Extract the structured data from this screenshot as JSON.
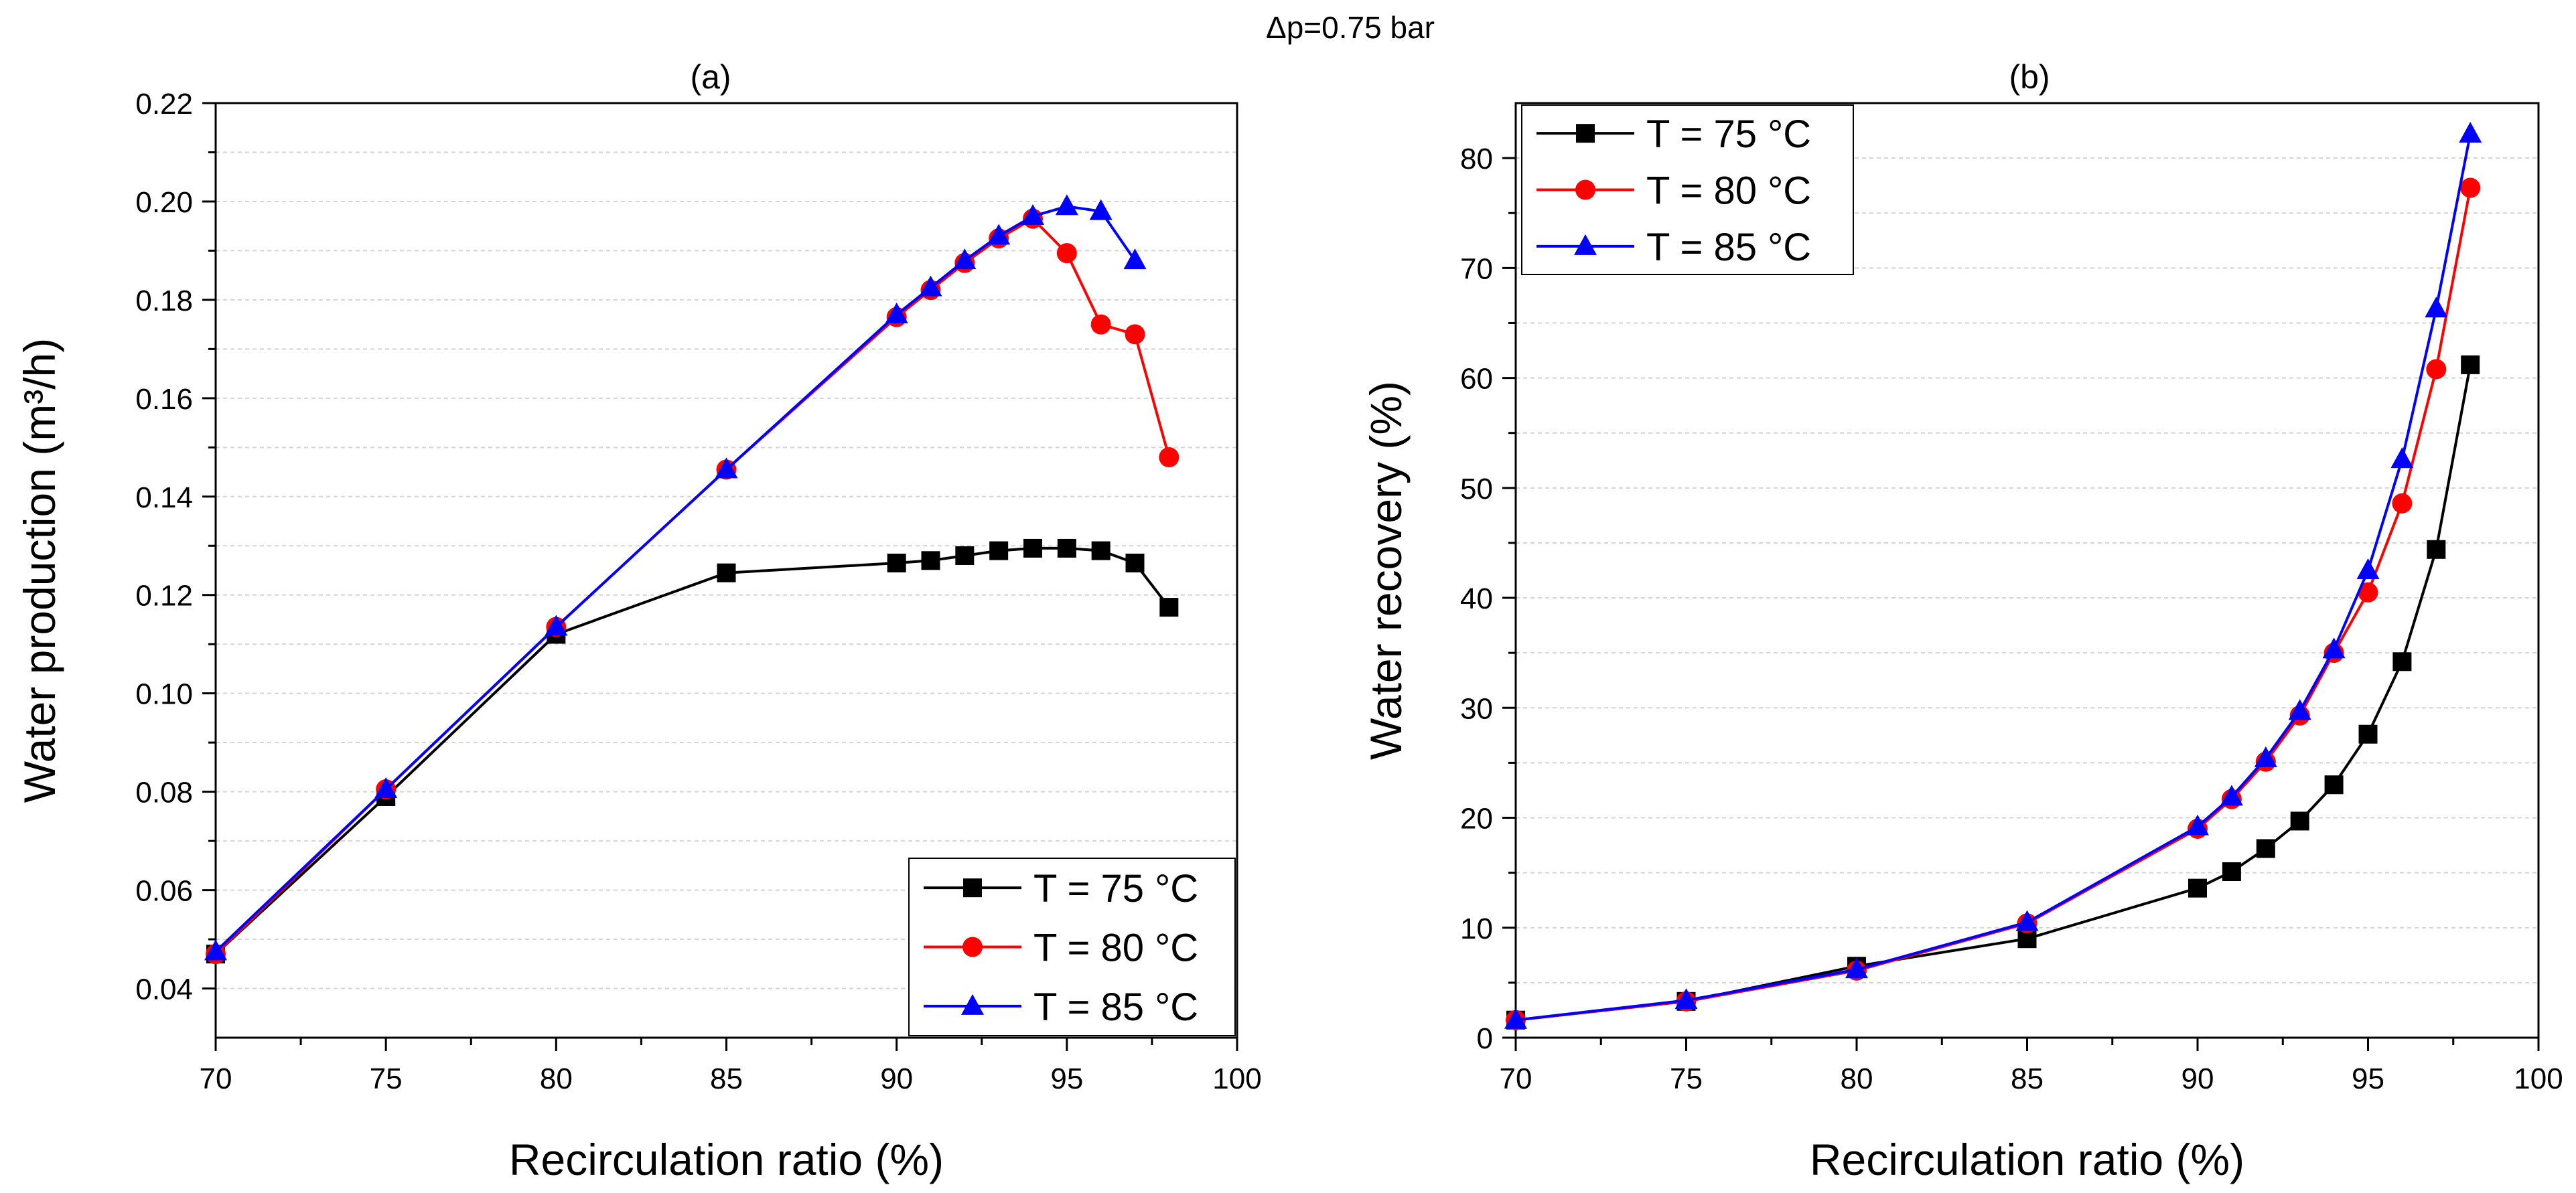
{
  "figure": {
    "suptitle": "Δp=0.75 bar"
  },
  "chart_data": [
    {
      "type": "line",
      "panel": "(a)",
      "title": "(a)",
      "xlabel": "Recirculation ratio (%)",
      "ylabel": "Water production (m³/h)",
      "xlim": [
        70,
        100
      ],
      "ylim": [
        0.03,
        0.22
      ],
      "xticks": [
        70,
        75,
        80,
        85,
        90,
        95,
        100
      ],
      "yticks": [
        0.04,
        0.06,
        0.08,
        0.1,
        0.12,
        0.14,
        0.16,
        0.18,
        0.2,
        0.22
      ],
      "ytick_labels": [
        "0.04",
        "0.06",
        "0.08",
        "0.10",
        "0.12",
        "0.14",
        "0.16",
        "0.18",
        "0.20",
        "0.22"
      ],
      "grid": true,
      "legend_position": "bottom-right",
      "series": [
        {
          "name": "T = 75 °C",
          "color": "#000000",
          "marker": "square",
          "x": [
            70,
            75,
            80,
            85,
            90,
            91,
            92,
            93,
            94,
            95,
            96,
            97,
            98
          ],
          "y": [
            0.047,
            0.079,
            0.112,
            0.1245,
            0.1265,
            0.127,
            0.128,
            0.129,
            0.1295,
            0.1295,
            0.129,
            0.1265,
            0.1175
          ]
        },
        {
          "name": "T = 80 °C",
          "color": "#ff0000",
          "marker": "circle",
          "x": [
            70,
            75,
            80,
            85,
            90,
            91,
            92,
            93,
            94,
            95,
            96,
            97,
            98
          ],
          "y": [
            0.047,
            0.0805,
            0.1135,
            0.1455,
            0.1765,
            0.182,
            0.1875,
            0.1925,
            0.1965,
            0.1895,
            0.175,
            0.173,
            0.148
          ]
        },
        {
          "name": "T = 85 °C",
          "color": "#0000ff",
          "marker": "triangle",
          "x": [
            70,
            75,
            80,
            85,
            90,
            91,
            92,
            93,
            94,
            95,
            96,
            97
          ],
          "y": [
            0.0475,
            0.0805,
            0.1135,
            0.1455,
            0.177,
            0.1825,
            0.188,
            0.193,
            0.197,
            0.199,
            0.198,
            0.188
          ]
        }
      ]
    },
    {
      "type": "line",
      "panel": "(b)",
      "title": "(b)",
      "xlabel": "Recirculation ratio (%)",
      "ylabel": "Water recovery (%)",
      "xlim": [
        70,
        100
      ],
      "ylim": [
        0,
        85
      ],
      "xticks": [
        70,
        75,
        80,
        85,
        90,
        95,
        100
      ],
      "yticks": [
        0,
        10,
        20,
        30,
        40,
        50,
        60,
        70,
        80
      ],
      "ytick_labels": [
        "0",
        "10",
        "20",
        "30",
        "40",
        "50",
        "60",
        "70",
        "80"
      ],
      "grid": true,
      "legend_position": "top-left",
      "series": [
        {
          "name": "T = 75 °C",
          "color": "#000000",
          "marker": "square",
          "x": [
            70,
            75,
            80,
            85,
            90,
            91,
            92,
            93,
            94,
            95,
            96,
            97,
            98
          ],
          "y": [
            1.6,
            3.3,
            6.5,
            9.0,
            13.6,
            15.1,
            17.2,
            19.7,
            23.0,
            27.6,
            34.2,
            44.4,
            61.2
          ]
        },
        {
          "name": "T = 80 °C",
          "color": "#ff0000",
          "marker": "circle",
          "x": [
            70,
            75,
            80,
            85,
            90,
            91,
            92,
            93,
            94,
            95,
            96,
            97,
            98
          ],
          "y": [
            1.6,
            3.3,
            6.1,
            10.4,
            19.0,
            21.7,
            25.1,
            29.3,
            35.0,
            40.5,
            48.6,
            60.8,
            77.3
          ]
        },
        {
          "name": "T = 85 °C",
          "color": "#0000ff",
          "marker": "triangle",
          "x": [
            70,
            75,
            80,
            85,
            90,
            91,
            92,
            93,
            94,
            95,
            96,
            97,
            98
          ],
          "y": [
            1.6,
            3.4,
            6.2,
            10.5,
            19.2,
            21.9,
            25.4,
            29.7,
            35.3,
            42.5,
            52.6,
            66.3,
            82.2
          ]
        }
      ]
    }
  ]
}
